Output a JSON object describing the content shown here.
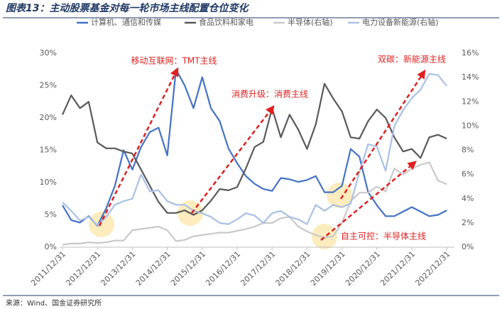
{
  "chart_data": {
    "type": "line",
    "title": "图表13：主动股票基金对每一轮市场主线配置仓位变化",
    "source": "来源：Wind、国金证券研究所",
    "categories": [
      "2011/12/31",
      null,
      null,
      null,
      "2012/12/31",
      null,
      null,
      null,
      "2013/12/31",
      null,
      null,
      null,
      "2014/12/31",
      null,
      null,
      null,
      "2015/12/31",
      null,
      null,
      null,
      "2016/12/31",
      null,
      null,
      null,
      "2017/12/31",
      null,
      null,
      null,
      "2018/12/31",
      null,
      null,
      null,
      "2019/12/31",
      null,
      null,
      null,
      "2020/12/31",
      null,
      null,
      null,
      "2021/12/31",
      null,
      null,
      null,
      "2022/12/31"
    ],
    "series": [
      {
        "name": "计算机、通信和传媒",
        "color": "#4472c4",
        "axis": "y",
        "values": [
          6.5,
          4.2,
          3.8,
          4.8,
          3.3,
          6.0,
          9.5,
          15.0,
          12.0,
          15.5,
          17.8,
          18.5,
          14.2,
          27.5,
          25.0,
          21.5,
          26.3,
          21.5,
          19.5,
          15.3,
          13.0,
          11.0,
          9.8,
          9.0,
          8.7,
          10.7,
          10.5,
          10.1,
          10.4,
          11.0,
          8.5,
          8.5,
          9.5,
          15.2,
          14.0,
          8.5,
          6.5,
          4.8,
          4.8,
          5.5,
          6.2,
          5.5,
          4.8,
          5.0,
          5.7
        ]
      },
      {
        "name": "食品饮料和家电",
        "color": "#595959",
        "axis": "y",
        "values": [
          20.5,
          23.5,
          21.5,
          22.5,
          16.2,
          15.3,
          15.3,
          14.8,
          14.5,
          12.0,
          9.5,
          7.0,
          5.3,
          5.3,
          5.7,
          5.0,
          5.7,
          7.2,
          9.0,
          8.8,
          9.3,
          12.2,
          15.5,
          16.3,
          21.5,
          17.0,
          20.5,
          18.2,
          15.2,
          19.0,
          25.3,
          23.0,
          21.0,
          17.0,
          16.8,
          19.5,
          21.3,
          20.0,
          17.0,
          14.8,
          15.2,
          13.8,
          17.0,
          17.4,
          16.8
        ]
      },
      {
        "name": "半导体(右轴)",
        "color": "#c9c9c9",
        "axis": "y2",
        "values": [
          0.2,
          0.3,
          0.3,
          0.4,
          0.35,
          0.4,
          0.55,
          0.55,
          1.4,
          1.5,
          1.6,
          1.7,
          1.4,
          0.5,
          0.6,
          0.9,
          1.0,
          1.1,
          1.2,
          1.2,
          1.35,
          1.5,
          1.7,
          2.0,
          2.0,
          2.4,
          2.5,
          1.7,
          1.3,
          1.0,
          0.8,
          0.9,
          2.0,
          3.8,
          4.5,
          4.5,
          5.0,
          4.6,
          6.5,
          6.0,
          6.5,
          6.8,
          7.0,
          5.5,
          5.2
        ]
      },
      {
        "name": "电力设备新能源(右轴)",
        "color": "#a9c1e4",
        "axis": "y2",
        "values": [
          3.7,
          3.0,
          2.2,
          2.5,
          1.8,
          2.5,
          3.5,
          3.8,
          4.0,
          6.0,
          4.6,
          4.7,
          3.8,
          3.5,
          3.5,
          3.0,
          2.8,
          2.5,
          2.0,
          1.9,
          2.3,
          2.8,
          2.6,
          2.0,
          2.8,
          3.0,
          2.5,
          2.3,
          1.9,
          3.5,
          3.0,
          3.5,
          3.3,
          3.6,
          6.2,
          8.5,
          8.3,
          6.3,
          10.0,
          11.3,
          12.3,
          13.0,
          14.3,
          14.2,
          13.3
        ]
      }
    ],
    "ylim": [
      0,
      30
    ],
    "yticks": [
      {
        "value": 0,
        "label": "0%"
      },
      {
        "value": 5,
        "label": "5%"
      },
      {
        "value": 10,
        "label": "10%"
      },
      {
        "value": 15,
        "label": "15%"
      },
      {
        "value": 20,
        "label": "20%"
      },
      {
        "value": 25,
        "label": "25%"
      },
      {
        "value": 30,
        "label": "30%"
      }
    ],
    "y2lim": [
      0,
      16
    ],
    "y2ticks": [
      {
        "value": 0,
        "label": "0%"
      },
      {
        "value": 2,
        "label": "2%"
      },
      {
        "value": 4,
        "label": "4%"
      },
      {
        "value": 6,
        "label": "6%"
      },
      {
        "value": 8,
        "label": "8%"
      },
      {
        "value": 10,
        "label": "10%"
      },
      {
        "value": 12,
        "label": "12%"
      },
      {
        "value": 14,
        "label": "14%"
      },
      {
        "value": 16,
        "label": "16%"
      }
    ],
    "annotations": [
      "移动互联网：TMT主线",
      "消费升级：消费主线",
      "自主可控：半导体主线",
      "双碳：新能源主线"
    ],
    "legend": "top",
    "grid": false
  }
}
